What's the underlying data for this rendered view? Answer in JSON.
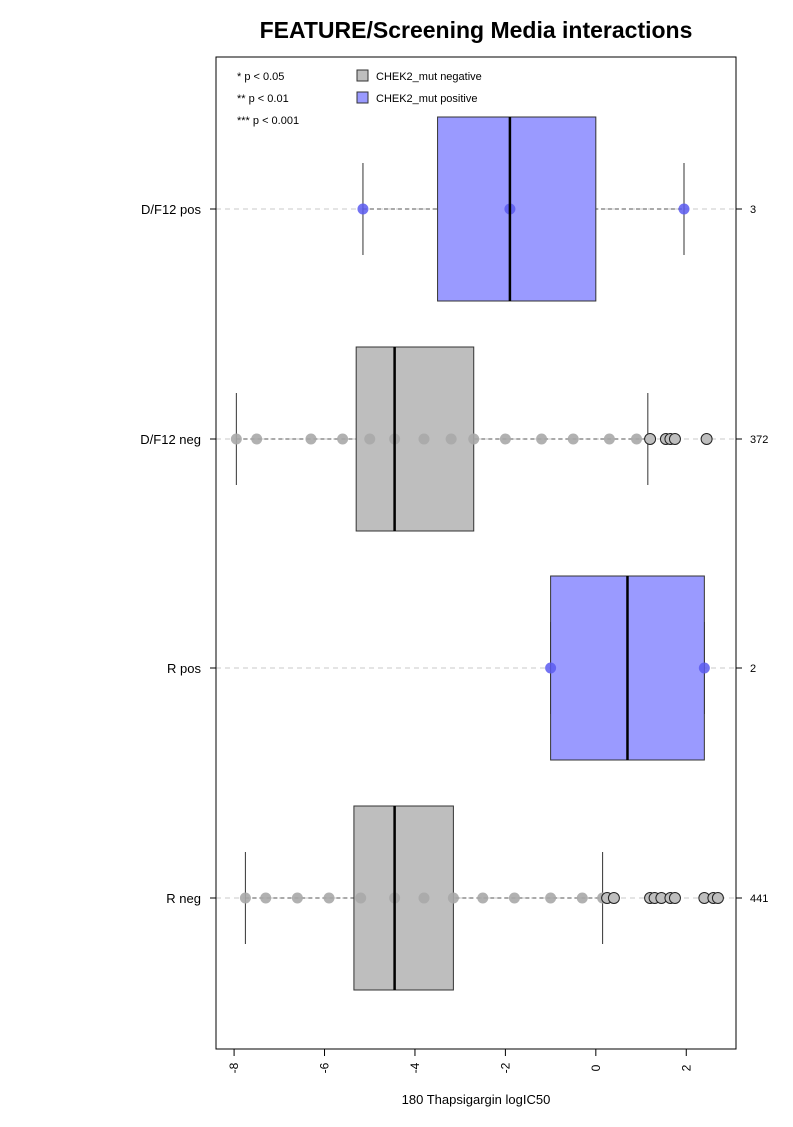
{
  "chart_data": {
    "type": "box",
    "title": "FEATURE/Screening Media interactions",
    "xlabel": "180 Thapsigargin logIC50",
    "ylabel": "",
    "xlim": [
      -8.4,
      3.1
    ],
    "x_ticks": [
      -8,
      -6,
      -4,
      -2,
      0,
      2
    ],
    "x_tick_labels": [
      "-8",
      "-6",
      "-4",
      "-2",
      "0",
      "2"
    ],
    "grid": "horizontal dashed",
    "legend": {
      "placement": "top-left",
      "significance": [
        "* p < 0.05",
        "** p < 0.01",
        "*** p < 0.001"
      ],
      "entries": [
        {
          "label": "CHEK2_mut negative",
          "color": "#bebebe"
        },
        {
          "label": "CHEK2_mut positive",
          "color": "#9a9aff"
        }
      ]
    },
    "colors": {
      "negative_box": "#bebebe",
      "positive_box": "#9a9aff",
      "negative_points": "#a9a9a9",
      "positive_points": "#5b5bf0"
    },
    "groups": [
      {
        "label": "D/F12 pos",
        "n": "3",
        "status": "positive",
        "whisker_low": -5.15,
        "q1": -3.5,
        "median": -1.9,
        "q3": 0.0,
        "whisker_high": 1.95,
        "outliers": [],
        "points": [
          -5.15,
          -1.9,
          1.95
        ]
      },
      {
        "label": "D/F12 neg",
        "n": "372",
        "status": "negative",
        "whisker_low": -7.95,
        "q1": -5.3,
        "median": -4.45,
        "q3": -2.7,
        "whisker_high": 1.15,
        "outliers": [
          1.2,
          1.55,
          1.65,
          1.75,
          2.45
        ],
        "points": [
          -7.95,
          -7.5,
          -6.3,
          -5.6,
          -5.0,
          -4.45,
          -3.8,
          -3.2,
          -2.7,
          -2.0,
          -1.2,
          -0.5,
          0.3,
          0.9
        ]
      },
      {
        "label": "R pos",
        "n": "2",
        "status": "positive",
        "whisker_low": -1.0,
        "q1": -1.0,
        "median": 0.7,
        "q3": 2.4,
        "whisker_high": 2.4,
        "outliers": [],
        "points": [
          -1.0,
          2.4
        ]
      },
      {
        "label": "R neg",
        "n": "441",
        "status": "negative",
        "whisker_low": -7.75,
        "q1": -5.35,
        "median": -4.45,
        "q3": -3.15,
        "whisker_high": 0.15,
        "outliers": [
          0.25,
          0.4,
          1.2,
          1.3,
          1.45,
          1.65,
          1.75,
          2.4,
          2.6,
          2.7
        ],
        "points": [
          -7.75,
          -7.3,
          -6.6,
          -5.9,
          -5.2,
          -4.45,
          -3.8,
          -3.15,
          -2.5,
          -1.8,
          -1.0,
          -0.3,
          0.15
        ]
      }
    ]
  }
}
